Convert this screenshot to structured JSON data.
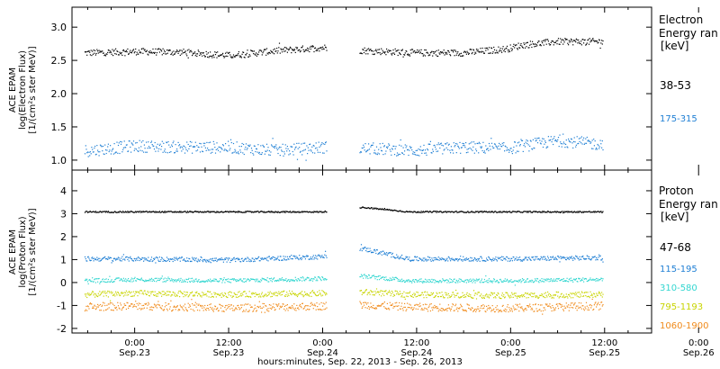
{
  "x_axis": {
    "title": "hours:minutes, Sep. 22, 2013 - Sep. 26, 2013",
    "tick_times": [
      "0:00",
      "12:00",
      "0:00",
      "12:00",
      "0:00",
      "12:00",
      "0:00"
    ],
    "tick_dates": [
      "Sep.23",
      "Sep.23",
      "Sep.24",
      "Sep.24",
      "Sep.25",
      "Sep.25",
      "Sep.26"
    ],
    "range_hours": [
      -8,
      66
    ]
  },
  "legend_colors": {
    "e_38_53": "#000000",
    "e_175_315": "#1f7fd4",
    "p_47_68": "#000000",
    "p_115_195": "#1f7fd4",
    "p_310_580": "#33d6d0",
    "p_795_1193": "#c8d400",
    "p_1060_1900": "#f08a1a"
  },
  "chart_data": [
    {
      "type": "scatter",
      "ylabel_lines": [
        "ACE EPAM",
        "log(Electron Flux)",
        "[1/(cm²s ster MeV)]"
      ],
      "ylim": [
        0.85,
        3.3
      ],
      "yticks": [
        1.0,
        1.5,
        2.0,
        2.5,
        3.0
      ],
      "ytick_labels": [
        "1.0",
        "1.5",
        "2.0",
        "2.5",
        "3.0"
      ],
      "legend_title": [
        "Electron",
        "Energy ran",
        "[keV]"
      ],
      "gap_hours": [
        24.5,
        28.7
      ],
      "data_end_hours": 59.8,
      "series": [
        {
          "name": "38-53",
          "color": "#000000",
          "x_hours": [
            -6,
            0,
            6,
            12,
            18,
            24,
            30,
            36,
            42,
            47.5,
            49.5,
            54,
            59
          ],
          "y": [
            2.62,
            2.64,
            2.63,
            2.58,
            2.65,
            2.7,
            2.65,
            2.62,
            2.62,
            2.68,
            2.74,
            2.79,
            2.79
          ]
        },
        {
          "name": "175-315",
          "color": "#1f7fd4",
          "x_hours": [
            -6,
            0,
            6,
            12,
            18,
            24,
            30,
            36,
            42,
            47.5,
            49.5,
            54,
            59
          ],
          "y": [
            1.15,
            1.22,
            1.2,
            1.2,
            1.15,
            1.2,
            1.18,
            1.15,
            1.2,
            1.18,
            1.22,
            1.3,
            1.25
          ]
        }
      ]
    },
    {
      "type": "scatter",
      "ylabel_lines": [
        "ACE EPAM",
        "log(Proton Flux)",
        "[1/(cm²s ster MeV)]"
      ],
      "ylim": [
        -2.2,
        4.9
      ],
      "yticks": [
        -2,
        -1,
        0,
        1,
        2,
        3,
        4
      ],
      "ytick_labels": [
        "-2",
        "-1",
        "0",
        "1",
        "2",
        "3",
        "4"
      ],
      "legend_title": [
        "Proton",
        "Energy ran",
        "[keV]"
      ],
      "gap_hours": [
        24.5,
        28.7
      ],
      "data_end_hours": 59.8,
      "series": [
        {
          "name": "47-68",
          "color": "#000000",
          "x_hours": [
            -6,
            0,
            12,
            24,
            29,
            35,
            48,
            59
          ],
          "y": [
            3.1,
            3.1,
            3.1,
            3.1,
            3.3,
            3.1,
            3.1,
            3.1
          ]
        },
        {
          "name": "115-195",
          "color": "#1f7fd4",
          "x_hours": [
            -6,
            0,
            12,
            24,
            29,
            35,
            48,
            59
          ],
          "y": [
            1.05,
            1.05,
            1.0,
            1.15,
            1.5,
            1.05,
            1.05,
            1.1
          ]
        },
        {
          "name": "310-580",
          "color": "#33d6d0",
          "x_hours": [
            -6,
            0,
            12,
            24,
            29,
            35,
            48,
            59
          ],
          "y": [
            0.1,
            0.15,
            0.1,
            0.2,
            0.3,
            0.1,
            0.1,
            0.15
          ]
        },
        {
          "name": "795-1193",
          "color": "#c8d400",
          "x_hours": [
            -6,
            0,
            12,
            24,
            29,
            35,
            48,
            59
          ],
          "y": [
            -0.5,
            -0.45,
            -0.5,
            -0.45,
            -0.4,
            -0.5,
            -0.55,
            -0.5
          ]
        },
        {
          "name": "1060-1900",
          "color": "#f08a1a",
          "x_hours": [
            -6,
            0,
            12,
            24,
            29,
            35,
            48,
            59
          ],
          "y": [
            -1.05,
            -1.0,
            -1.1,
            -1.0,
            -0.95,
            -1.05,
            -1.1,
            -1.0
          ]
        }
      ]
    }
  ]
}
